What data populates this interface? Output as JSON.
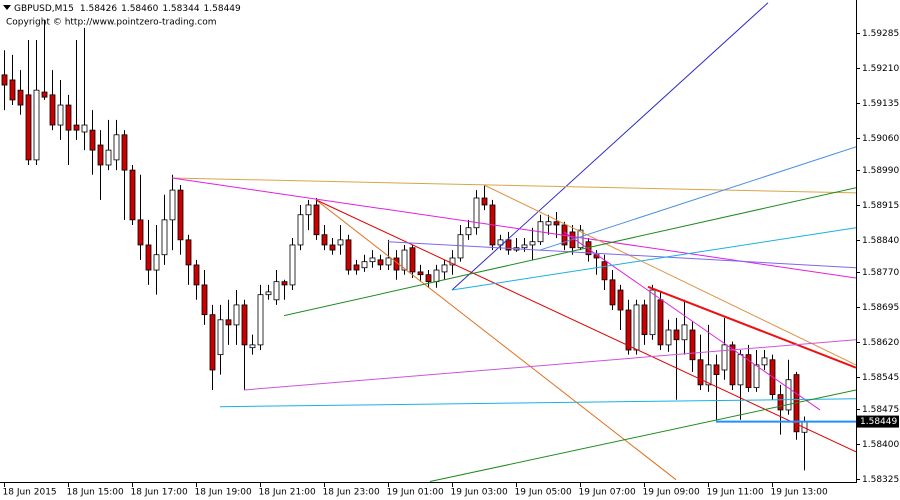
{
  "chart_data": {
    "type": "candlestick",
    "header_symbol": "GBPUSD,M15",
    "header_values": [
      "1.58426",
      "1.58460",
      "1.58344",
      "1.58449"
    ],
    "copyright": "Copyright © http://www.pointzero-trading.com",
    "categories": [
      "18 Jun 2015",
      null,
      null,
      null,
      null,
      null,
      null,
      null,
      "18 Jun 15:00",
      null,
      null,
      null,
      null,
      null,
      null,
      null,
      "18 Jun 17:00",
      null,
      null,
      null,
      null,
      null,
      null,
      null,
      "18 Jun 19:00",
      null,
      null,
      null,
      null,
      null,
      null,
      null,
      "18 Jun 21:00",
      null,
      null,
      null,
      null,
      null,
      null,
      null,
      "18 Jun 23:00",
      null,
      null,
      null,
      null,
      null,
      null,
      null,
      "19 Jun 01:00",
      null,
      null,
      null,
      null,
      null,
      null,
      null,
      "19 Jun 03:00",
      null,
      null,
      null,
      null,
      null,
      null,
      null,
      "19 Jun 05:00",
      null,
      null,
      null,
      null,
      null,
      null,
      null,
      "19 Jun 07:00",
      null,
      null,
      null,
      null,
      null,
      null,
      null,
      "19 Jun 09:00",
      null,
      null,
      null,
      null,
      null,
      null,
      null,
      "19 Jun 11:00",
      null,
      null,
      null,
      null,
      null,
      null,
      null,
      "19 Jun 13:00",
      null,
      null,
      null,
      null
    ],
    "open": [
      1.59195,
      1.59184,
      1.59162,
      1.59152,
      1.59012,
      1.59158,
      1.59152,
      1.59087,
      1.5913,
      1.59087,
      1.59072,
      1.59076,
      1.59044,
      1.59001,
      1.59012,
      1.59066,
      1.5899,
      1.58883,
      1.58829,
      1.58775,
      1.58808,
      1.58883,
      1.58947,
      1.5884,
      1.58786,
      1.58743,
      1.58679,
      1.58593,
      1.58668,
      1.58657,
      1.587,
      1.58608,
      1.58614,
      1.58722,
      1.58711,
      1.5875,
      1.58743,
      1.58829,
      1.58894,
      1.58915,
      1.58851,
      1.58829,
      1.58829,
      1.5884,
      1.58786,
      1.5878,
      1.58793,
      1.58797,
      1.58786,
      1.58801,
      1.58775,
      1.58823,
      1.58771,
      1.58765,
      1.5875,
      1.58771,
      1.58786,
      1.58801,
      1.58851,
      1.58866,
      1.5893,
      1.58915,
      1.58829,
      1.5884,
      1.58818,
      1.58823,
      1.58829,
      1.58836,
      1.58872,
      1.58879,
      1.58872,
      1.58857,
      1.58823,
      1.58836,
      1.58808,
      1.58793,
      1.58754,
      1.58732,
      1.58689,
      1.58603,
      1.587,
      1.58636,
      1.58711,
      1.58614,
      1.58646,
      1.58625,
      1.58646,
      1.58582,
      1.58528,
      1.58571,
      1.5856,
      1.58614,
      1.58528,
      1.58593,
      1.58522,
      1.58571,
      1.58582,
      1.58507,
      1.58474,
      1.5855,
      1.58426
    ],
    "high": [
      1.59248,
      1.59238,
      1.59205,
      1.5927,
      1.5927,
      1.59313,
      1.59205,
      1.59184,
      1.59152,
      1.5927,
      1.59296,
      1.59119,
      1.59076,
      1.59098,
      1.59098,
      1.59076,
      1.59001,
      1.5898,
      1.58883,
      1.58872,
      1.58937,
      1.5898,
      1.58958,
      1.58851,
      1.58797,
      1.58775,
      1.587,
      1.587,
      1.58711,
      1.58732,
      1.58711,
      1.58636,
      1.58743,
      1.58743,
      1.58775,
      1.58754,
      1.58844,
      1.58915,
      1.58926,
      1.5893,
      1.58872,
      1.58844,
      1.58872,
      1.58851,
      1.58797,
      1.58808,
      1.58818,
      1.58808,
      1.5884,
      1.58818,
      1.58829,
      1.58829,
      1.58786,
      1.58775,
      1.58786,
      1.58797,
      1.58818,
      1.58872,
      1.58883,
      1.58947,
      1.58958,
      1.58926,
      1.58851,
      1.58857,
      1.58844,
      1.58844,
      1.58866,
      1.58894,
      1.58894,
      1.589,
      1.58879,
      1.58872,
      1.58872,
      1.58844,
      1.58818,
      1.58808,
      1.58775,
      1.58743,
      1.58711,
      1.58711,
      1.58711,
      1.58743,
      1.58728,
      1.58668,
      1.58672,
      1.58711,
      1.58664,
      1.58636,
      1.58657,
      1.58593,
      1.58672,
      1.58621,
      1.58603,
      1.58614,
      1.58603,
      1.58603,
      1.58593,
      1.58528,
      1.58582,
      1.58556,
      1.5846
    ],
    "low": [
      1.59119,
      1.5913,
      1.59109,
      1.59001,
      1.59001,
      1.59141,
      1.59076,
      1.59055,
      1.59001,
      1.59055,
      1.59033,
      1.5898,
      1.58926,
      1.5899,
      1.5899,
      1.58883,
      1.58872,
      1.58797,
      1.58743,
      1.58722,
      1.58786,
      1.58818,
      1.58808,
      1.58743,
      1.58711,
      1.58657,
      1.58517,
      1.5855,
      1.58614,
      1.58614,
      1.58517,
      1.58593,
      1.58603,
      1.58711,
      1.587,
      1.58711,
      1.58732,
      1.58818,
      1.58861,
      1.5884,
      1.58818,
      1.58808,
      1.58808,
      1.58765,
      1.58765,
      1.58771,
      1.5878,
      1.58775,
      1.58775,
      1.58754,
      1.58765,
      1.58758,
      1.5875,
      1.58737,
      1.58737,
      1.58754,
      1.58765,
      1.58793,
      1.5884,
      1.58851,
      1.58904,
      1.58818,
      1.58818,
      1.58808,
      1.58814,
      1.58814,
      1.58797,
      1.58829,
      1.58851,
      1.58844,
      1.58818,
      1.58808,
      1.58818,
      1.58793,
      1.58765,
      1.58732,
      1.58689,
      1.58646,
      1.58593,
      1.58593,
      1.58614,
      1.58625,
      1.58603,
      1.58599,
      1.58496,
      1.58593,
      1.58556,
      1.58517,
      1.58513,
      1.58453,
      1.58539,
      1.58517,
      1.58453,
      1.58513,
      1.58513,
      1.5856,
      1.58496,
      1.58421,
      1.58464,
      1.5841,
      1.58344
    ],
    "close": [
      1.59173,
      1.59141,
      1.5913,
      1.59012,
      1.59162,
      1.59147,
      1.59087,
      1.5913,
      1.59076,
      1.59076,
      1.59087,
      1.59033,
      1.59001,
      1.59033,
      1.59066,
      1.5899,
      1.58883,
      1.58829,
      1.58775,
      1.58808,
      1.58883,
      1.58947,
      1.5884,
      1.58786,
      1.58743,
      1.58679,
      1.5856,
      1.58668,
      1.58657,
      1.587,
      1.58614,
      1.58614,
      1.58722,
      1.58728,
      1.5875,
      1.58743,
      1.58829,
      1.58894,
      1.58915,
      1.58851,
      1.58829,
      1.58818,
      1.5884,
      1.58775,
      1.58775,
      1.58793,
      1.58801,
      1.58786,
      1.58801,
      1.58775,
      1.58818,
      1.58771,
      1.58765,
      1.5875,
      1.58775,
      1.58786,
      1.58801,
      1.58851,
      1.58866,
      1.5893,
      1.58915,
      1.58829,
      1.5884,
      1.58818,
      1.58823,
      1.58829,
      1.58836,
      1.58879,
      1.58879,
      1.58872,
      1.58829,
      1.58823,
      1.58861,
      1.58808,
      1.58801,
      1.58754,
      1.587,
      1.58689,
      1.58603,
      1.587,
      1.58636,
      1.58732,
      1.58614,
      1.58646,
      1.58625,
      1.58657,
      1.58582,
      1.58528,
      1.58571,
      1.5855,
      1.58614,
      1.58528,
      1.58593,
      1.58522,
      1.58571,
      1.58586,
      1.58507,
      1.58474,
      1.58539,
      1.58427,
      1.58449
    ],
    "up_color": "#ffffff",
    "down_color": "#cc0000",
    "xlim": [
      -0.5,
      106.5
    ],
    "ylim": [
      1.58319,
      1.59356
    ],
    "yticks": [
      1.59285,
      {
        "value": 1.5921,
        "label": "1.59210"
      },
      1.59135,
      {
        "value": 1.5906,
        "label": "1.59060"
      },
      {
        "value": 1.5899,
        "label": "1.58990"
      },
      1.58915,
      {
        "value": 1.5884,
        "label": "1.58840"
      },
      {
        "value": 1.5877,
        "label": "1.58770"
      },
      1.58695,
      {
        "value": 1.5862,
        "label": "1.58620"
      },
      1.58545,
      1.58475,
      {
        "value": 1.584,
        "label": "1.58400"
      },
      1.58325
    ],
    "grid": false,
    "trendlines": [
      {
        "color": "#2b2bc8",
        "width": 1,
        "x": [
          56,
          95.5
        ],
        "y": [
          1.58732,
          1.5935
        ]
      },
      {
        "color": "#d9a44a",
        "width": 1,
        "x": [
          21,
          106.5
        ],
        "y": [
          1.58973,
          1.58941
        ]
      },
      {
        "color": "#e020e0",
        "width": 1,
        "x": [
          21,
          106.5
        ],
        "y": [
          1.58973,
          1.58758
        ]
      },
      {
        "color": "#e07020",
        "width": 1,
        "x": [
          39,
          84
        ],
        "y": [
          1.58926,
          1.58324
        ]
      },
      {
        "color": "#e09040",
        "width": 1,
        "x": [
          60,
          106.5
        ],
        "y": [
          1.58958,
          1.58571
        ]
      },
      {
        "color": "#e00000",
        "width": 1,
        "x": [
          39,
          106.5
        ],
        "y": [
          1.58926,
          1.58384
        ]
      },
      {
        "color": "#ee1111",
        "width": 2,
        "x": [
          80.5,
          106.5
        ],
        "y": [
          1.58739,
          1.58565
        ]
      },
      {
        "color": "#e020e0",
        "width": 1,
        "x": [
          70,
          102
        ],
        "y": [
          1.58857,
          1.58474
        ]
      },
      {
        "color": "#7b68ee",
        "width": 1,
        "x": [
          48,
          106.5
        ],
        "y": [
          1.58836,
          1.5878
        ]
      },
      {
        "color": "#cc55dd",
        "width": 1,
        "x": [
          30,
          106.5
        ],
        "y": [
          1.58517,
          1.58625
        ]
      },
      {
        "color": "#1ab0e0",
        "width": 1,
        "x": [
          27,
          106.5
        ],
        "y": [
          1.58481,
          1.58498
        ]
      },
      {
        "color": "#1ab0e0",
        "width": 1,
        "x": [
          56,
          106.5
        ],
        "y": [
          1.58732,
          1.58866
        ]
      },
      {
        "color": "#4a8fe0",
        "width": 1,
        "x": [
          67,
          106.5
        ],
        "y": [
          1.58818,
          1.5904
        ]
      },
      {
        "color": "#1e8c1e",
        "width": 1,
        "x": [
          35,
          106.5
        ],
        "y": [
          1.58677,
          1.58952
        ]
      },
      {
        "color": "#1e8c1e",
        "width": 1,
        "x": [
          53.25,
          106.5
        ],
        "y": [
          1.5832,
          1.58517
        ]
      },
      {
        "color": "#1e90ff",
        "width": 2,
        "x": [
          89,
          106.5
        ],
        "y": [
          1.58449,
          1.58449
        ]
      }
    ]
  }
}
